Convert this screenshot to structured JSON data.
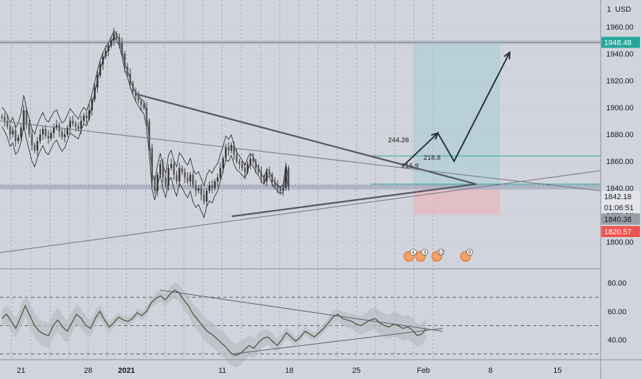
{
  "header": {
    "currency": "USD",
    "scale_mark": "1"
  },
  "colors": {
    "background": "#d1d4dc",
    "candle_up": "#3a3a3a",
    "target": "#26a69a",
    "stop": "#ef5350",
    "price_tag": "#4a4a4a",
    "rsi": "#4a5e3c",
    "band": "#7d7d7d"
  },
  "chart_data": [
    {
      "type": "candlestick",
      "title": "",
      "currency": "USD",
      "ylim": [
        1780,
        1980
      ],
      "price_ticks": [
        1800,
        1820,
        1840,
        1860,
        1880,
        1900,
        1920,
        1940,
        1960
      ],
      "price_tick_labels": [
        "1800.00",
        "1820.00",
        "1840.00",
        "1860.00",
        "1880.00",
        "1900.00",
        "1920.00",
        "1940.00",
        "1960.00"
      ],
      "x_ticks": [
        {
          "label": "21",
          "day": -11
        },
        {
          "label": "28",
          "day": -4
        },
        {
          "label": "2021",
          "day": 0
        },
        {
          "label": "11",
          "day": 10
        },
        {
          "label": "18",
          "day": 17
        },
        {
          "label": "25",
          "day": 24
        },
        {
          "label": "Feb",
          "day": 31
        },
        {
          "label": "8",
          "day": 38
        },
        {
          "label": "15",
          "day": 45
        }
      ],
      "xlim": [
        -13.2,
        49.5
      ],
      "close_series": [
        1893,
        1890,
        1886,
        1880,
        1883,
        1875,
        1878,
        1885,
        1898,
        1888,
        1880,
        1872,
        1868,
        1875,
        1880,
        1884,
        1879,
        1877,
        1881,
        1885,
        1887,
        1882,
        1878,
        1880,
        1885,
        1890,
        1888,
        1886,
        1884,
        1890,
        1894,
        1892,
        1898,
        1906,
        1915,
        1924,
        1932,
        1938,
        1942,
        1946,
        1950,
        1955,
        1952,
        1948,
        1940,
        1930,
        1925,
        1918,
        1912,
        1908,
        1905,
        1902,
        1900,
        1890,
        1870,
        1845,
        1838,
        1850,
        1858,
        1848,
        1842,
        1855,
        1858,
        1850,
        1845,
        1855,
        1852,
        1848,
        1845,
        1850,
        1842,
        1838,
        1840,
        1835,
        1830,
        1838,
        1842,
        1840,
        1845,
        1848,
        1855,
        1862,
        1870,
        1868,
        1872,
        1865,
        1860,
        1858,
        1855,
        1852,
        1858,
        1862,
        1860,
        1855,
        1852,
        1848,
        1845,
        1852,
        1850,
        1845,
        1842,
        1840,
        1838,
        1840,
        1855,
        1842
      ],
      "levels": [
        {
          "name": "target",
          "value": 1948.48,
          "label": "1948.48"
        },
        {
          "name": "current",
          "value": 1842.18,
          "label": "1842.18"
        },
        {
          "name": "countdown",
          "value": 1839.8,
          "label": "01:06:51"
        },
        {
          "name": "bid",
          "value": 1840.38,
          "label": "1840.38"
        },
        {
          "name": "stop",
          "value": 1820.57,
          "label": "1820.57"
        }
      ],
      "position": {
        "entry": 1842.18,
        "target": 1948.48,
        "stop": 1820.57,
        "day_start": 30,
        "day_end": 39
      },
      "triangle_upper": [
        [
          1,
          1910
        ],
        [
          36.5,
          1843
        ]
      ],
      "triangle_lower": [
        [
          11,
          1819
        ],
        [
          36.5,
          1843
        ]
      ],
      "horizontal_line": 1864,
      "annotations": [
        {
          "text": "244.26",
          "day": 27.3,
          "price": 1874
        },
        {
          "text": "218.8",
          "day": 31,
          "price": 1861
        },
        {
          "text": "215.9",
          "day": 28.7,
          "price": 1855
        }
      ],
      "projection_path": [
        [
          28.8,
          1856
        ],
        [
          32.5,
          1881
        ],
        [
          34.2,
          1860
        ],
        [
          40,
          1941
        ]
      ],
      "event_markers": [
        {
          "label": "4",
          "day": 29.5
        },
        {
          "label": "3",
          "day": 30.7
        },
        {
          "label": "12",
          "day": 32.4
        },
        {
          "label": "8",
          "day": 35.4
        }
      ]
    },
    {
      "type": "line",
      "title": "",
      "ylim": [
        26,
        90
      ],
      "ticks": [
        40,
        60,
        80
      ],
      "tick_labels": [
        "40.00",
        "60.00",
        "80.00"
      ],
      "dashed_levels": [
        30,
        50,
        70
      ],
      "series": [
        {
          "values": [
            55,
            58,
            53,
            48,
            56,
            64,
            57,
            50,
            46,
            44,
            43,
            50,
            54,
            49,
            46,
            52,
            58,
            55,
            50,
            48,
            55,
            60,
            54,
            49,
            52,
            56,
            54,
            53,
            55,
            59,
            57,
            60,
            66,
            69,
            71,
            68,
            72,
            75,
            73,
            68,
            64,
            58,
            54,
            50,
            46,
            44,
            41,
            38,
            35,
            31,
            29,
            30,
            33,
            36,
            34,
            38,
            41,
            42,
            39,
            36,
            40,
            45,
            42,
            39,
            42,
            46,
            44,
            42,
            45,
            48,
            52,
            56,
            58,
            55,
            54,
            53,
            51,
            50,
            52,
            54,
            55,
            52,
            50,
            49,
            51,
            50,
            48,
            49,
            47,
            43,
            44,
            48
          ]
        }
      ],
      "trend_upper": [
        [
          3.5,
          75
        ],
        [
          33,
          46
        ]
      ],
      "trend_lower": [
        [
          11,
          30
        ],
        [
          33,
          48
        ]
      ]
    }
  ]
}
